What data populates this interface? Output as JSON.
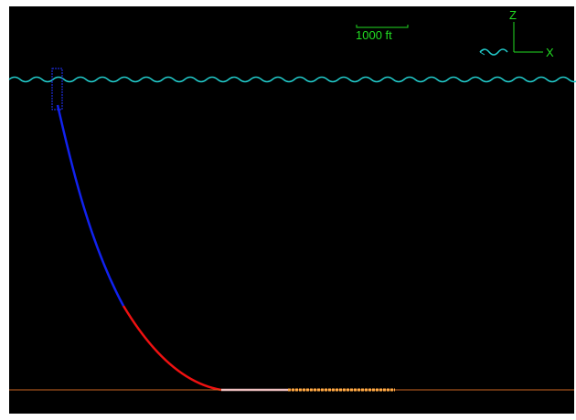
{
  "scale_bar": {
    "label": "1000 ft"
  },
  "axes": {
    "z_label": "Z",
    "x_label": "X"
  }
}
